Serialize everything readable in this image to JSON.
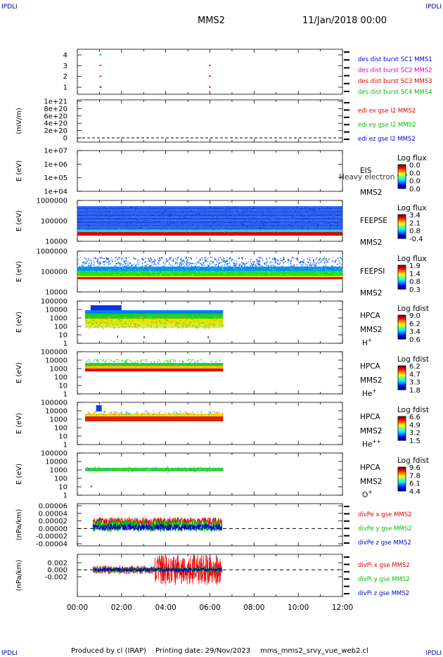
{
  "header": {
    "corner_left_top": "IPDLI",
    "corner_right_top": "IPDLI",
    "corner_left_bottom": "IPDLI",
    "corner_right_bottom": "IPDLI",
    "spacecraft": "MMS2",
    "date_time": "11/Jan/2018 00:00"
  },
  "footer": {
    "produced_by": "Produced by cl (IRAP)",
    "printing_date": "Printing date: 29/Nov/2023",
    "filename": "mms_mms2_srvy_vue_web2.cl"
  },
  "colors": {
    "red": "#e00000",
    "green": "#00c000",
    "blue": "#0000d0",
    "magenta": "#d000d0",
    "black": "#000000"
  },
  "chart_data": {
    "type": "time-series-stack",
    "x_axis": {
      "tick_labels": [
        "00:00",
        "02:00",
        "04:00",
        "06:00",
        "08:00",
        "10:00",
        "12:00"
      ],
      "range_hours": [
        0,
        12
      ]
    },
    "panels": [
      {
        "id": "burst",
        "ylabel": "",
        "yticks": [
          "1",
          "2",
          "3",
          "4"
        ],
        "legend": [
          {
            "text": "des dist burst SC1 MMS1",
            "color": "#0000d0"
          },
          {
            "text": "des dist burst SC2 MMS2",
            "color": "#d000d0"
          },
          {
            "text": "des dist burst SC3 MMS3",
            "color": "#e00000"
          },
          {
            "text": "des dist burst SC4 MMS4",
            "color": "#00c000"
          }
        ],
        "marks": [
          {
            "level": 4,
            "t": 1.0,
            "color": "#00c000"
          },
          {
            "level": 3,
            "t": 1.0,
            "color": "#e00000"
          },
          {
            "level": 2,
            "t": 1.0,
            "color": "#e00000"
          },
          {
            "level": 1,
            "t": 1.0,
            "color": "#0000d0"
          },
          {
            "level": 3,
            "t": 5.95,
            "color": "#e00000"
          },
          {
            "level": 2,
            "t": 5.95,
            "color": "#e00000"
          },
          {
            "level": 1,
            "t": 5.95,
            "color": "#e00000"
          }
        ]
      },
      {
        "id": "edi",
        "ylabel": "(mV/m)",
        "yticks": [
          "0",
          "2e+20",
          "4e+20",
          "6e+20",
          "8e+20",
          "1e+21"
        ],
        "legend": [
          {
            "text": "edi ex gse l2 MMS2",
            "color": "#e00000"
          },
          {
            "text": "edi ey gse l2 MMS2",
            "color": "#00c000"
          },
          {
            "text": "edi ez gse l2 MMS2",
            "color": "#0000d0"
          }
        ]
      },
      {
        "id": "eis",
        "ylabel": "E (eV)",
        "yticks": [
          "1e+04",
          "1e+05",
          "1e+06",
          "1e+07"
        ],
        "instrument": "EIS",
        "subtitle": "Heavy electron tof",
        "spacecraft": "MMS2",
        "colorbar": {
          "label": "Log flux",
          "ticks": [
            "0.0",
            "0.0",
            "0.0",
            "0.0"
          ]
        }
      },
      {
        "id": "feepse",
        "ylabel": "E (eV)",
        "yticks": [
          "10000",
          "100000",
          "1000000"
        ],
        "instrument": "FEEPSE",
        "spacecraft": "MMS2",
        "colorbar": {
          "label": "Log flux",
          "ticks": [
            "3.4",
            "2.1",
            "0.8",
            "-0.4"
          ]
        }
      },
      {
        "id": "feepsi",
        "ylabel": "E (eV)",
        "yticks": [
          "10000",
          "100000",
          "1000000"
        ],
        "instrument": "FEEPSI",
        "spacecraft": "MMS2",
        "colorbar": {
          "label": "Log flux",
          "ticks": [
            "1.9",
            "1.4",
            "0.8",
            "0.3"
          ]
        }
      },
      {
        "id": "hpca_h",
        "ylabel": "E (eV)",
        "yticks": [
          "1",
          "10",
          "100",
          "1000",
          "10000",
          "100000"
        ],
        "instrument": "HPCA",
        "spacecraft": "MMS2",
        "species": "H",
        "species_sup": "+",
        "colorbar": {
          "label": "Log fdist",
          "ticks": [
            "9.0",
            "6.2",
            "3.4",
            "0.6"
          ]
        }
      },
      {
        "id": "hpca_he",
        "ylabel": "E (eV)",
        "yticks": [
          "1",
          "10",
          "100",
          "1000",
          "10000",
          "100000"
        ],
        "instrument": "HPCA",
        "spacecraft": "MMS2",
        "species": "He",
        "species_sup": "+",
        "colorbar": {
          "label": "Log fdist",
          "ticks": [
            "6.2",
            "4.7",
            "3.3",
            "1.8"
          ]
        }
      },
      {
        "id": "hpca_hepp",
        "ylabel": "E (eV)",
        "yticks": [
          "1",
          "10",
          "100",
          "1000",
          "10000",
          "100000"
        ],
        "instrument": "HPCA",
        "spacecraft": "MMS2",
        "species": "He",
        "species_sup": "++",
        "colorbar": {
          "label": "Log fdist",
          "ticks": [
            "6.6",
            "4.9",
            "3.2",
            "1.5"
          ]
        }
      },
      {
        "id": "hpca_o",
        "ylabel": "E (eV)",
        "yticks": [
          "1",
          "10",
          "100",
          "1000",
          "10000",
          "100000"
        ],
        "instrument": "HPCA",
        "spacecraft": "MMS2",
        "species": "O",
        "species_sup": "+",
        "colorbar": {
          "label": "Log fdist",
          "ticks": [
            "9.6",
            "7.8",
            "6.1",
            "4.4"
          ]
        }
      },
      {
        "id": "divpe",
        "ylabel": "(nPa/km)",
        "yticks": [
          "-0.00004",
          "-0.00002",
          "0.00000",
          "0.00002",
          "0.00004",
          "0.00006"
        ],
        "ylim": [
          -4e-05,
          6e-05
        ],
        "legend": [
          {
            "text": "divPe x gse MMS2",
            "color": "#e00000"
          },
          {
            "text": "divPe y gse MMS2",
            "color": "#00c000"
          },
          {
            "text": "divPe z gse MMS2",
            "color": "#0000d0"
          }
        ]
      },
      {
        "id": "divpi",
        "ylabel": "(nPa/km)",
        "yticks": [
          "-0.002",
          "0.000",
          "0.002"
        ],
        "ylim": [
          -0.0035,
          0.0035
        ],
        "legend": [
          {
            "text": "divPi x gse MMS2",
            "color": "#e00000"
          },
          {
            "text": "divPi y gse MMS2",
            "color": "#00c000"
          },
          {
            "text": "divPi z gse MMS2",
            "color": "#0000d0"
          }
        ]
      }
    ]
  }
}
